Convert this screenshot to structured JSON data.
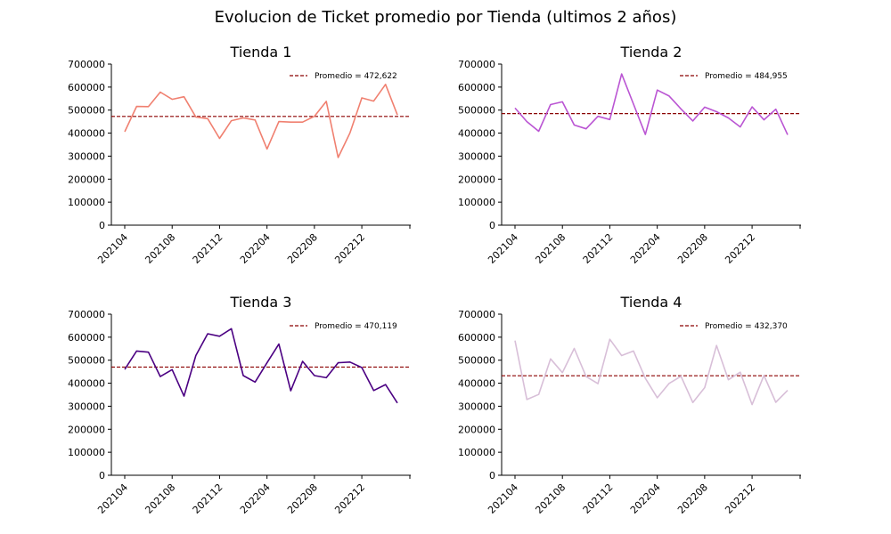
{
  "figure": {
    "title": "Evolucion de Ticket promedio por Tienda (ultimos 2 años)"
  },
  "chart_data": [
    {
      "type": "line",
      "title": "Tienda 1",
      "color": "#f08070",
      "avg_color": "#8b0000",
      "x": [
        "202104",
        "202105",
        "202106",
        "202107",
        "202108",
        "202109",
        "202110",
        "202111",
        "202112",
        "202201",
        "202202",
        "202203",
        "202204",
        "202205",
        "202206",
        "202207",
        "202208",
        "202209",
        "202210",
        "202211",
        "202212",
        "202301",
        "202302",
        "202303"
      ],
      "xticks": [
        "202104",
        "202108",
        "202112",
        "202204",
        "202208",
        "202212"
      ],
      "values": [
        406000,
        516000,
        515000,
        578000,
        547000,
        558000,
        470000,
        463000,
        377000,
        454000,
        466000,
        457000,
        331000,
        450000,
        448000,
        448000,
        473000,
        538000,
        294000,
        401000,
        553000,
        539000,
        612000,
        479000
      ],
      "average": 472622,
      "legend": "Promedio = 472,622",
      "ylim": [
        0,
        700000
      ],
      "yticks": [
        "0",
        "100000",
        "200000",
        "300000",
        "400000",
        "500000",
        "600000",
        "700000"
      ]
    },
    {
      "type": "line",
      "title": "Tienda 2",
      "color": "#ba55d3",
      "avg_color": "#8b0000",
      "x": [
        "202104",
        "202105",
        "202106",
        "202107",
        "202108",
        "202109",
        "202110",
        "202111",
        "202112",
        "202201",
        "202202",
        "202203",
        "202204",
        "202205",
        "202206",
        "202207",
        "202208",
        "202209",
        "202210",
        "202211",
        "202212",
        "202301",
        "202302",
        "202303"
      ],
      "xticks": [
        "202104",
        "202108",
        "202112",
        "202204",
        "202208",
        "202212"
      ],
      "values": [
        509000,
        450000,
        408000,
        524000,
        536000,
        435000,
        419000,
        473000,
        459000,
        657000,
        526000,
        394000,
        587000,
        561000,
        505000,
        453000,
        513000,
        493000,
        466000,
        427000,
        514000,
        458000,
        504000,
        393000
      ],
      "average": 484955,
      "legend": "Promedio = 484,955",
      "ylim": [
        0,
        700000
      ],
      "yticks": [
        "0",
        "100000",
        "200000",
        "300000",
        "400000",
        "500000",
        "600000",
        "700000"
      ]
    },
    {
      "type": "line",
      "title": "Tienda 3",
      "color": "#4b0082",
      "avg_color": "#8b0000",
      "x": [
        "202104",
        "202105",
        "202106",
        "202107",
        "202108",
        "202109",
        "202110",
        "202111",
        "202112",
        "202201",
        "202202",
        "202203",
        "202204",
        "202205",
        "202206",
        "202207",
        "202208",
        "202209",
        "202210",
        "202211",
        "202212",
        "202301",
        "202302",
        "202303"
      ],
      "xticks": [
        "202104",
        "202108",
        "202112",
        "202204",
        "202208",
        "202212"
      ],
      "values": [
        460000,
        540000,
        535000,
        429000,
        459000,
        344000,
        520000,
        615000,
        604000,
        637000,
        433000,
        405000,
        489000,
        570000,
        367000,
        495000,
        433000,
        424000,
        489000,
        492000,
        468000,
        368000,
        394000,
        314000
      ],
      "average": 470119,
      "legend": "Promedio = 470,119",
      "ylim": [
        0,
        700000
      ],
      "yticks": [
        "0",
        "100000",
        "200000",
        "300000",
        "400000",
        "500000",
        "600000",
        "700000"
      ]
    },
    {
      "type": "line",
      "title": "Tienda 4",
      "color": "#d8bfd8",
      "avg_color": "#8b0000",
      "x": [
        "202104",
        "202105",
        "202106",
        "202107",
        "202108",
        "202109",
        "202110",
        "202111",
        "202112",
        "202201",
        "202202",
        "202203",
        "202204",
        "202205",
        "202206",
        "202207",
        "202208",
        "202209",
        "202210",
        "202211",
        "202212",
        "202301",
        "202302",
        "202303"
      ],
      "xticks": [
        "202104",
        "202108",
        "202112",
        "202204",
        "202208",
        "202212"
      ],
      "values": [
        585000,
        329000,
        351000,
        506000,
        446000,
        551000,
        429000,
        398000,
        591000,
        520000,
        540000,
        421000,
        337000,
        399000,
        430000,
        316000,
        381000,
        564000,
        415000,
        448000,
        307000,
        434000,
        317000,
        369000
      ],
      "average": 432370,
      "legend": "Promedio = 432,370",
      "ylim": [
        0,
        700000
      ],
      "yticks": [
        "0",
        "100000",
        "200000",
        "300000",
        "400000",
        "500000",
        "600000",
        "700000"
      ]
    }
  ]
}
